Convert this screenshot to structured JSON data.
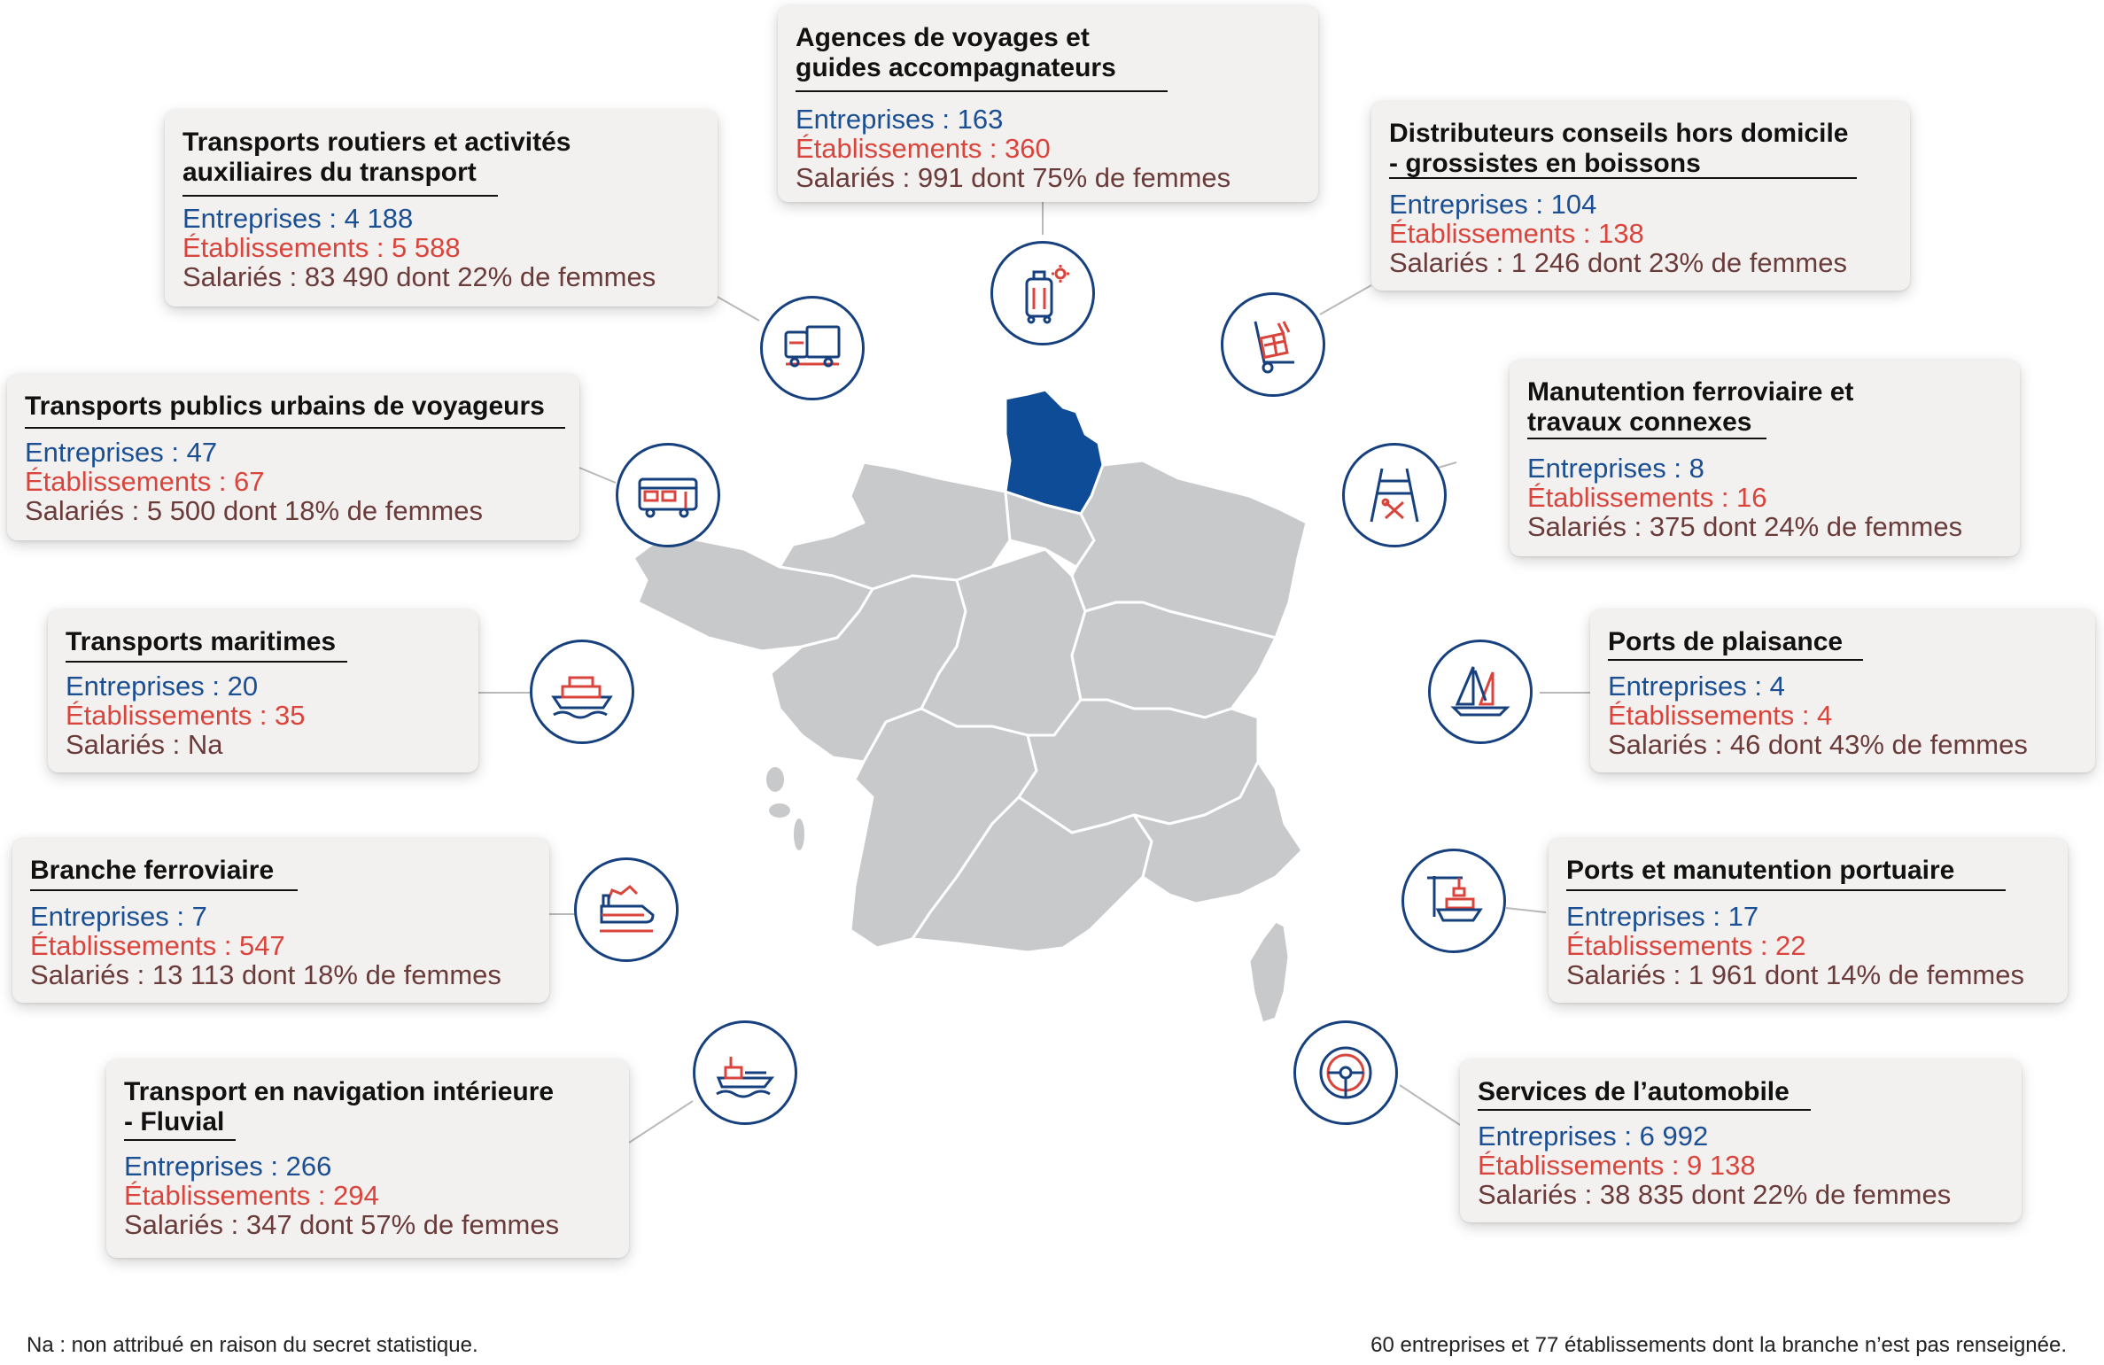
{
  "cards": [
    {
      "id": "agences",
      "title": [
        "Agences de voyages et",
        "guides accompagnateurs"
      ],
      "entreprises": "Entreprises : 163",
      "etablissements": "Établissements : 360",
      "salaries": "Salariés : 991 dont 75% de femmes",
      "icon": "luggage-icon"
    },
    {
      "id": "routiers",
      "title": [
        "Transports routiers et activités",
        "auxiliaires du transport"
      ],
      "entreprises": "Entreprises : 4 188",
      "etablissements": "Établissements : 5 588",
      "salaries": "Salariés : 83 490 dont 22% de femmes",
      "icon": "truck-icon"
    },
    {
      "id": "distributeurs",
      "title": [
        "Distributeurs conseils hors domicile",
        "- grossistes en boissons"
      ],
      "entreprises": "Entreprises : 104",
      "etablissements": "Établissements : 138",
      "salaries": "Salariés : 1 246 dont 23% de femmes",
      "icon": "hand-truck-icon"
    },
    {
      "id": "urbains",
      "title": [
        "Transports publics urbains de voyageurs"
      ],
      "entreprises": "Entreprises : 47",
      "etablissements": "Établissements : 67",
      "salaries": "Salariés : 5 500 dont 18% de femmes",
      "icon": "bus-icon"
    },
    {
      "id": "manutention",
      "title": [
        "Manutention ferroviaire et",
        "travaux connexes"
      ],
      "entreprises": "Entreprises : 8",
      "etablissements": "Établissements : 16",
      "salaries": "Salariés : 375 dont 24% de femmes",
      "icon": "rail-tools-icon"
    },
    {
      "id": "maritimes",
      "title": [
        "Transports maritimes"
      ],
      "entreprises": "Entreprises : 20",
      "etablissements": "Établissements : 35",
      "salaries": "Salariés : Na",
      "icon": "cruise-ship-icon"
    },
    {
      "id": "plaisance",
      "title": [
        "Ports de plaisance"
      ],
      "entreprises": "Entreprises : 4",
      "etablissements": "Établissements : 4",
      "salaries": "Salariés : 46 dont 43% de femmes",
      "icon": "sailboat-icon"
    },
    {
      "id": "ferroviaire",
      "title": [
        "Branche ferroviaire"
      ],
      "entreprises": "Entreprises : 7",
      "etablissements": "Établissements : 547",
      "salaries": "Salariés : 13 113 dont 18% de femmes",
      "icon": "train-icon"
    },
    {
      "id": "portuaire",
      "title": [
        "Ports et manutention portuaire"
      ],
      "entreprises": "Entreprises : 17",
      "etablissements": "Établissements : 22",
      "salaries": "Salariés : 1 961 dont 14% de femmes",
      "icon": "port-crane-icon"
    },
    {
      "id": "fluvial",
      "title": [
        "Transport en navigation intérieure",
        "- Fluvial"
      ],
      "entreprises": "Entreprises : 266",
      "etablissements": "Établissements : 294",
      "salaries": "Salariés : 347 dont 57% de femmes",
      "icon": "barge-icon"
    },
    {
      "id": "automobile",
      "title": [
        "Services de l’automobile"
      ],
      "entreprises": "Entreprises : 6 992",
      "etablissements": "Établissements : 9 138",
      "salaries": "Salariés : 38 835 dont 22% de femmes",
      "icon": "steering-wheel-icon"
    }
  ],
  "notes": {
    "left": "Na : non attribué en raison du secret statistique.",
    "right": "60 entreprises et 77 établissements dont la branche n’est pas renseignée."
  },
  "map": {
    "highlighted_region": "Hauts-de-France",
    "colors": {
      "highlight": "#0f4c97",
      "region": "#c8c9cb",
      "border": "#ffffff",
      "icon_blue": "#17407e",
      "icon_red": "#d9443c"
    }
  }
}
